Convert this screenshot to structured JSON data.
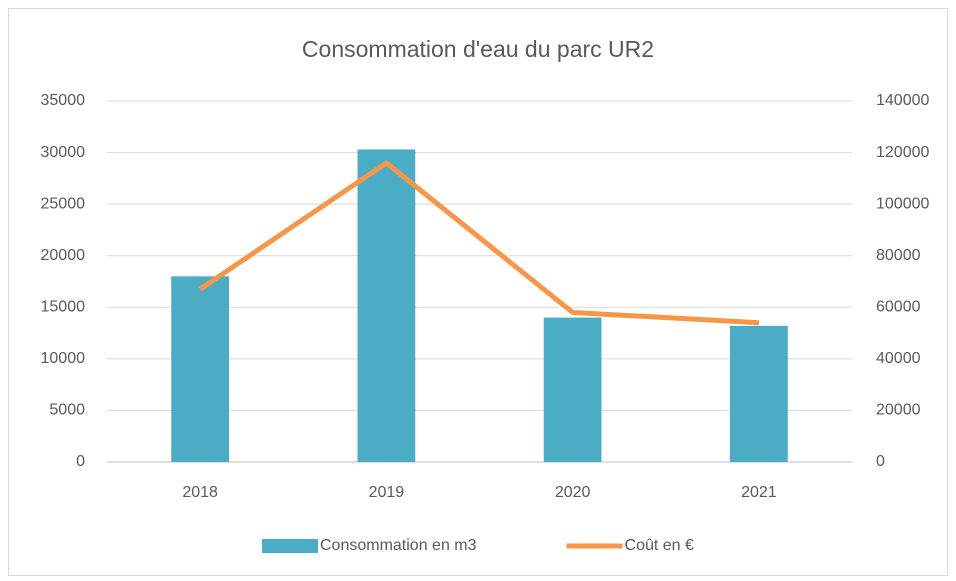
{
  "chart_data": {
    "type": "bar",
    "title": "Consommation d'eau du parc UR2",
    "categories": [
      "2018",
      "2019",
      "2020",
      "2021"
    ],
    "series": [
      {
        "name": "Consommation en m3",
        "type": "bar",
        "color": "#4bacc6",
        "values": [
          18000,
          30300,
          14000,
          13200
        ]
      },
      {
        "name": "Coût en €",
        "type": "line",
        "axis": "y2",
        "color": "#f79646",
        "values": [
          67000,
          116000,
          58000,
          54000
        ]
      }
    ],
    "ylim": [
      0,
      35000
    ],
    "yticks": [
      0,
      5000,
      10000,
      15000,
      20000,
      25000,
      30000,
      35000
    ],
    "y2lim": [
      0,
      140000
    ],
    "y2ticks": [
      0,
      20000,
      40000,
      60000,
      80000,
      100000,
      120000,
      140000
    ],
    "grid": true,
    "legend": "bottom"
  }
}
